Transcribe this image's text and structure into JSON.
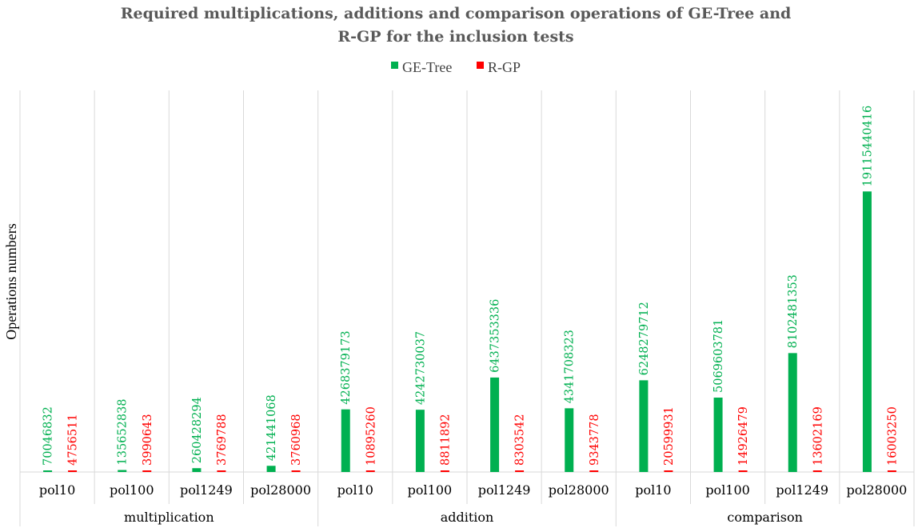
{
  "chart_data": {
    "type": "bar",
    "title_lines": [
      "Required multiplications, additions and comparison operations of GE-Tree and",
      "R-GP for the inclusion tests"
    ],
    "ylabel": "Operations numbers",
    "xlabel": "",
    "ylim": [
      0,
      26000000000
    ],
    "grid": "vertical category separators",
    "legend_position": "top-center",
    "groups": [
      "multiplication",
      "addition",
      "comparison"
    ],
    "categories": [
      "pol10",
      "pol100",
      "pol1249",
      "pol28000"
    ],
    "series": [
      {
        "name": "GE-Tree",
        "color": "#00b050",
        "values": [
          [
            70046832,
            135652838,
            260428294,
            421441068
          ],
          [
            4268379173,
            4242730037,
            6437353336,
            4341708323
          ],
          [
            6248279712,
            5069603781,
            8102481353,
            19115440416
          ]
        ]
      },
      {
        "name": "R-GP",
        "color": "#ff0000",
        "values": [
          [
            4756511,
            3990643,
            3769788,
            3760968
          ],
          [
            10895260,
            8811892,
            8303542,
            9343778
          ],
          [
            20599931,
            14926479,
            13602169,
            16003250
          ]
        ]
      }
    ]
  }
}
